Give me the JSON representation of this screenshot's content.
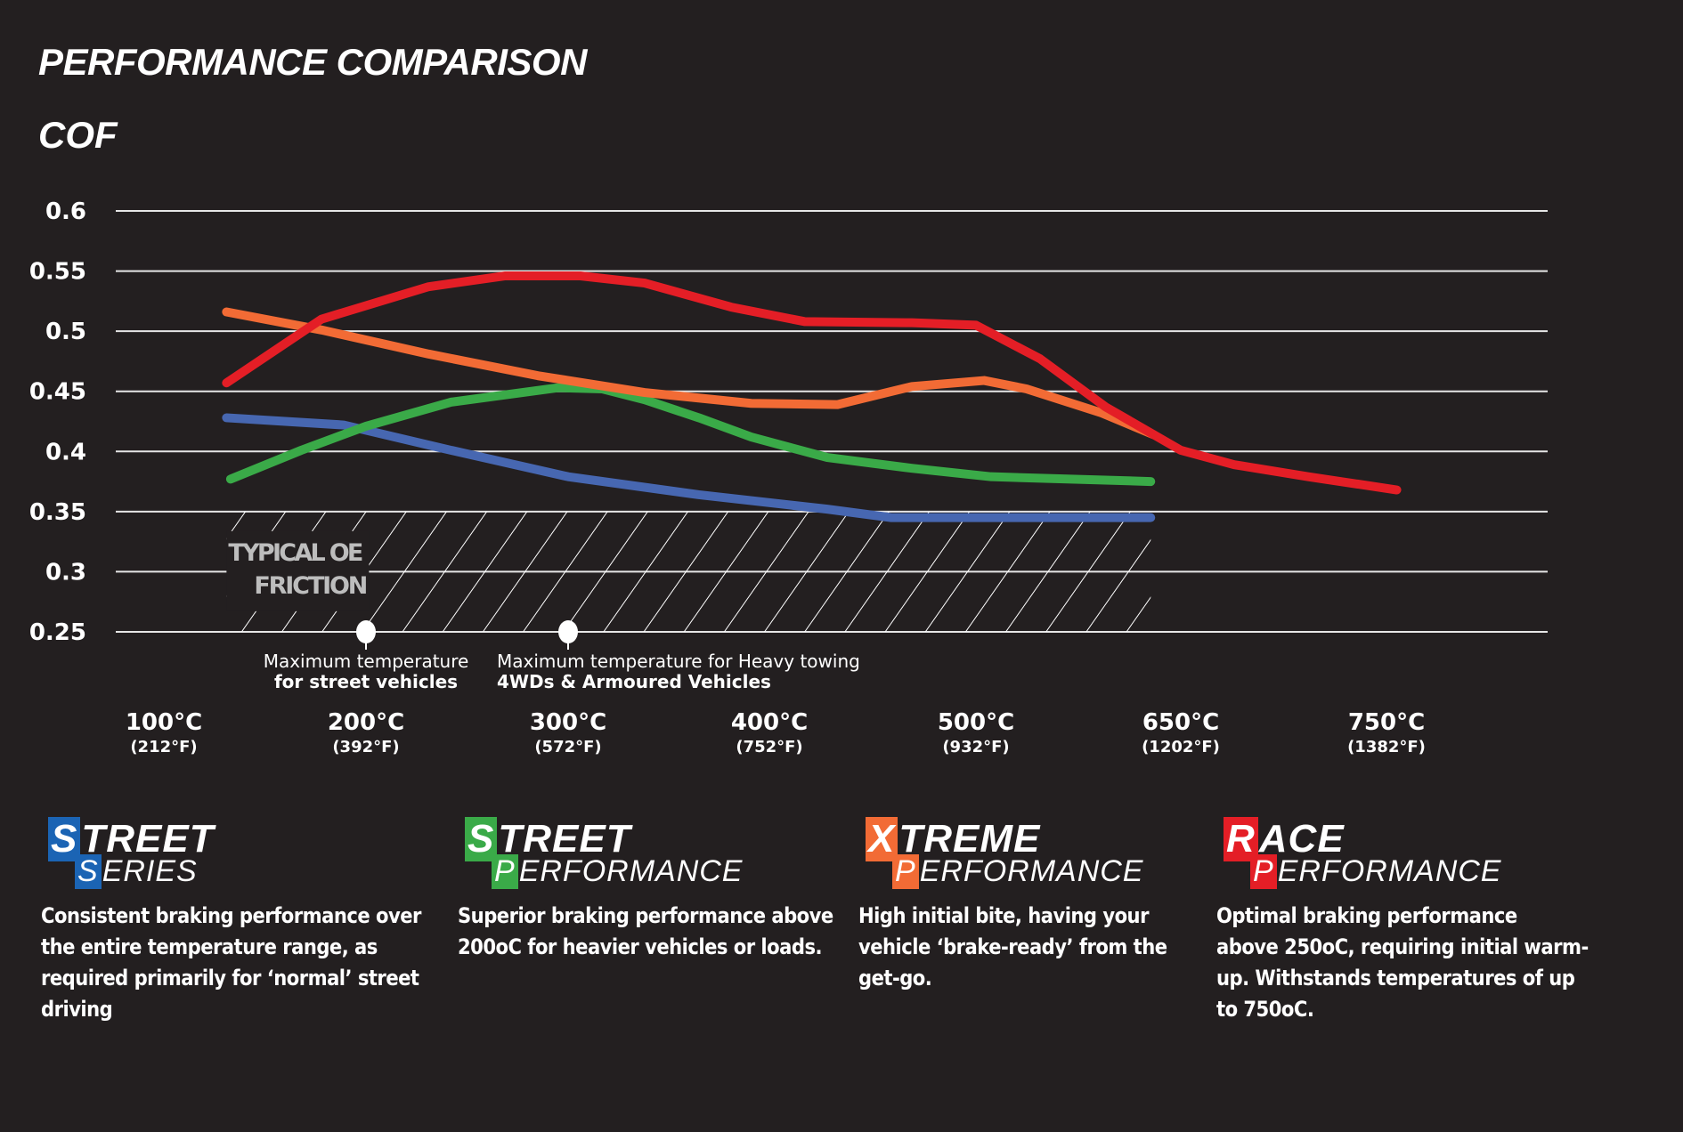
{
  "header": {
    "title": "PERFORMANCE COMPARISON",
    "subtitle": "COF"
  },
  "chart_data": {
    "type": "line",
    "title": "PERFORMANCE COMPARISON",
    "ylabel": "COF",
    "ylim": [
      0.25,
      0.6
    ],
    "y_ticks": [
      "0.6",
      "0.55",
      "0.5",
      "0.45",
      "0.4",
      "0.35",
      "0.3",
      "0.25"
    ],
    "y_tick_values": [
      0.6,
      0.55,
      0.5,
      0.45,
      0.4,
      0.35,
      0.3,
      0.25
    ],
    "x_ticks": [
      {
        "value": 100,
        "c": "100°C",
        "f": "(212°F)"
      },
      {
        "value": 200,
        "c": "200°C",
        "f": "(392°F)"
      },
      {
        "value": 300,
        "c": "300°C",
        "f": "(572°F)"
      },
      {
        "value": 400,
        "c": "400°C",
        "f": "(752°F)"
      },
      {
        "value": 500,
        "c": "500°C",
        "f": "(932°F)"
      },
      {
        "value": 650,
        "c": "650°C",
        "f": "(1202°F)"
      },
      {
        "value": 750,
        "c": "750°C",
        "f": "(1382°F)"
      }
    ],
    "grid": true,
    "legend": "none",
    "series": [
      {
        "color": "#4767b1",
        "points": [
          [
            131,
            0.428
          ],
          [
            189,
            0.422
          ],
          [
            242,
            0.401
          ],
          [
            300,
            0.379
          ],
          [
            365,
            0.364
          ],
          [
            428,
            0.352
          ],
          [
            459,
            0.345
          ],
          [
            628,
            0.345
          ]
        ]
      },
      {
        "color": "#3aaa48",
        "points": [
          [
            133,
            0.377
          ],
          [
            168,
            0.401
          ],
          [
            200,
            0.421
          ],
          [
            242,
            0.441
          ],
          [
            295,
            0.453
          ],
          [
            317,
            0.452
          ],
          [
            338,
            0.443
          ],
          [
            365,
            0.428
          ],
          [
            391,
            0.412
          ],
          [
            428,
            0.395
          ],
          [
            469,
            0.386
          ],
          [
            511,
            0.379
          ],
          [
            628,
            0.375
          ]
        ]
      },
      {
        "color": "#f26b35",
        "points": [
          [
            131,
            0.516
          ],
          [
            178,
            0.501
          ],
          [
            231,
            0.481
          ],
          [
            285,
            0.463
          ],
          [
            338,
            0.449
          ],
          [
            391,
            0.44
          ],
          [
            433,
            0.439
          ],
          [
            469,
            0.454
          ],
          [
            506,
            0.459
          ],
          [
            537,
            0.452
          ],
          [
            592,
            0.432
          ],
          [
            630,
            0.414
          ]
        ]
      },
      {
        "color": "#e41e26",
        "points": [
          [
            131,
            0.457
          ],
          [
            178,
            0.51
          ],
          [
            231,
            0.537
          ],
          [
            269,
            0.546
          ],
          [
            306,
            0.546
          ],
          [
            338,
            0.54
          ],
          [
            381,
            0.52
          ],
          [
            417,
            0.508
          ],
          [
            469,
            0.507
          ],
          [
            500,
            0.505
          ],
          [
            547,
            0.477
          ],
          [
            595,
            0.437
          ],
          [
            650,
            0.401
          ],
          [
            676,
            0.389
          ],
          [
            712,
            0.379
          ],
          [
            755,
            0.368
          ]
        ]
      }
    ],
    "shaded_region": {
      "label_line1": "TYPICAL OE",
      "label_line2": "FRICTION",
      "x_range": [
        131,
        628
      ],
      "y_range": [
        0.25,
        0.35
      ]
    },
    "annotations": [
      {
        "x": 200,
        "y": 0.25,
        "line1": "Maximum temperature",
        "line2": "for street vehicles"
      },
      {
        "x": 300,
        "y": 0.25,
        "line1": "Maximum temperature for Heavy towing",
        "line2": "4WDs & Armoured Vehicles"
      }
    ]
  },
  "products": [
    {
      "line1_initial": "S",
      "line1_rest": "TREET",
      "line2_initial": "S",
      "line2_rest": "ERIES",
      "color": "#1b64b4",
      "description": [
        "Consistent braking performance over",
        "the entire temperature range, as",
        "required primarily for ‘normal’ street",
        "driving"
      ]
    },
    {
      "line1_initial": "S",
      "line1_rest": "TREET",
      "line2_initial": "P",
      "line2_rest": "ERFORMANCE",
      "color": "#3aaa48",
      "description": [
        "Superior braking performance above",
        "200oC for heavier vehicles or loads."
      ]
    },
    {
      "line1_initial": "X",
      "line1_rest": "TREME",
      "line2_initial": "P",
      "line2_rest": "ERFORMANCE",
      "color": "#f26b35",
      "description": [
        "High initial bite, having your",
        "vehicle ‘brake-ready’ from the",
        "get-go."
      ]
    },
    {
      "line1_initial": "R",
      "line1_rest": "ACE",
      "line2_initial": "P",
      "line2_rest": "ERFORMANCE",
      "color": "#e41e26",
      "description": [
        "Optimal braking performance",
        "above 250oC, requiring initial warm-",
        "up. Withstands temperatures of up",
        "to 750oC."
      ]
    }
  ]
}
